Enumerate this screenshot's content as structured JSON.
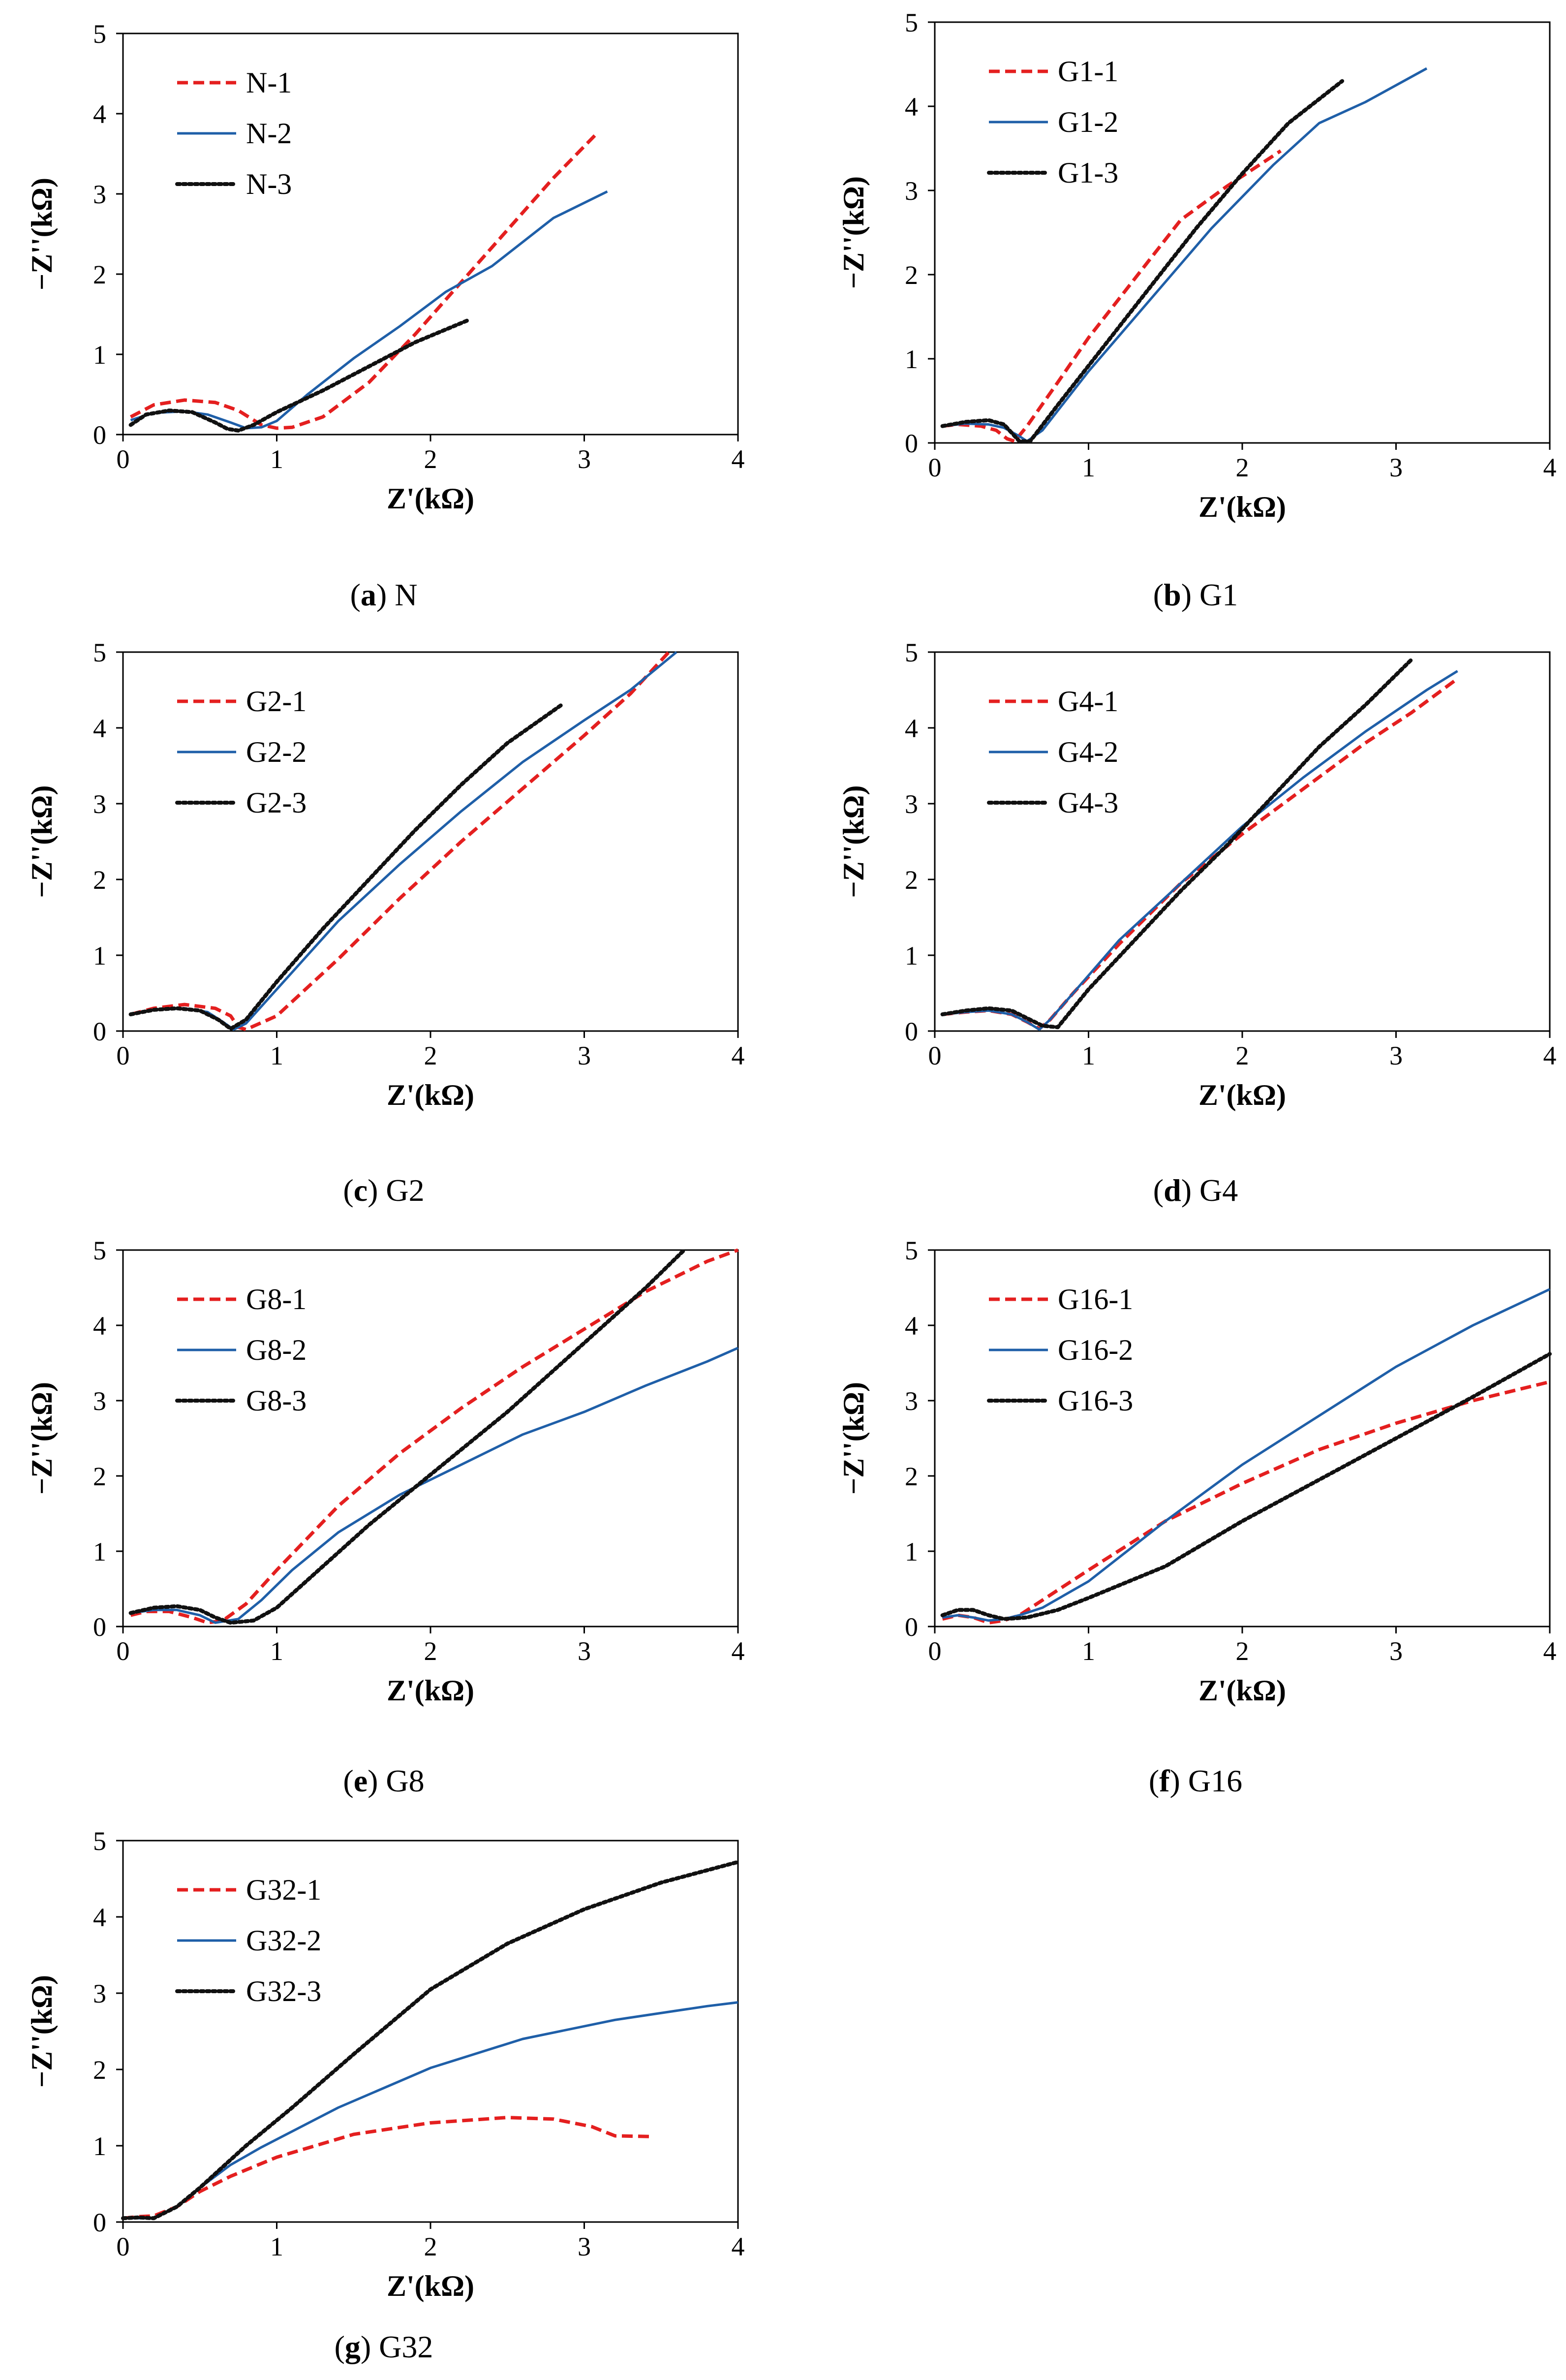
{
  "figure": {
    "colors": {
      "dashed_red": "#e41f1f",
      "solid_blue": "#1f5fa8",
      "dotted_black": "#111111"
    }
  },
  "chart_data": [
    {
      "type": "line",
      "caption_letter": "a",
      "caption_text": "N",
      "xlabel": "Z'(kΩ)",
      "ylabel": "−Z''(kΩ)",
      "xlim": [
        0,
        4
      ],
      "ylim": [
        0,
        5
      ],
      "xticks": [
        0,
        1,
        2,
        3,
        4
      ],
      "yticks": [
        0,
        1,
        2,
        3,
        4,
        5
      ],
      "legend_position": "top-left",
      "series": [
        {
          "name": "N-1",
          "style": "dashed",
          "x": [
            0.05,
            0.2,
            0.4,
            0.6,
            0.75,
            0.85,
            0.9,
            1.0,
            1.1,
            1.3,
            1.6,
            1.9,
            2.2,
            2.5,
            2.8,
            3.07
          ],
          "y": [
            0.22,
            0.37,
            0.43,
            0.4,
            0.3,
            0.18,
            0.12,
            0.08,
            0.09,
            0.22,
            0.65,
            1.25,
            1.9,
            2.55,
            3.2,
            3.73
          ]
        },
        {
          "name": "N-2",
          "style": "solid",
          "x": [
            0.05,
            0.2,
            0.4,
            0.55,
            0.7,
            0.8,
            0.9,
            1.0,
            1.2,
            1.5,
            1.8,
            2.1,
            2.4,
            2.8,
            3.15
          ],
          "y": [
            0.18,
            0.27,
            0.29,
            0.25,
            0.15,
            0.08,
            0.09,
            0.17,
            0.5,
            0.95,
            1.35,
            1.78,
            2.1,
            2.7,
            3.03
          ]
        },
        {
          "name": "N-3",
          "style": "dotted",
          "x": [
            0.05,
            0.15,
            0.3,
            0.45,
            0.6,
            0.68,
            0.75,
            0.85,
            1.0,
            1.3,
            1.6,
            1.9,
            2.25
          ],
          "y": [
            0.12,
            0.25,
            0.3,
            0.28,
            0.15,
            0.07,
            0.05,
            0.12,
            0.28,
            0.55,
            0.85,
            1.15,
            1.43
          ]
        }
      ]
    },
    {
      "type": "line",
      "caption_letter": "b",
      "caption_text": "G1",
      "xlabel": "Z'(kΩ)",
      "ylabel": "−Z''(kΩ)",
      "xlim": [
        0,
        4
      ],
      "ylim": [
        0,
        5
      ],
      "xticks": [
        0,
        1,
        2,
        3,
        4
      ],
      "yticks": [
        0,
        1,
        2,
        3,
        4,
        5
      ],
      "legend_position": "top-left",
      "series": [
        {
          "name": "G1-1",
          "style": "dashed",
          "x": [
            0.05,
            0.15,
            0.3,
            0.4,
            0.47,
            0.52,
            0.6,
            0.8,
            1.0,
            1.3,
            1.6,
            1.9,
            2.25
          ],
          "y": [
            0.2,
            0.22,
            0.2,
            0.15,
            0.05,
            0.02,
            0.2,
            0.72,
            1.25,
            1.95,
            2.65,
            3.05,
            3.47
          ]
        },
        {
          "name": "G1-2",
          "style": "solid",
          "x": [
            0.05,
            0.2,
            0.35,
            0.45,
            0.55,
            0.6,
            0.7,
            1.0,
            1.4,
            1.8,
            2.2,
            2.5,
            2.8,
            3.2
          ],
          "y": [
            0.2,
            0.23,
            0.22,
            0.18,
            0.08,
            0.02,
            0.15,
            0.85,
            1.7,
            2.55,
            3.3,
            3.8,
            4.05,
            4.45
          ]
        },
        {
          "name": "G1-3",
          "style": "dotted",
          "x": [
            0.05,
            0.2,
            0.35,
            0.45,
            0.5,
            0.55,
            0.62,
            0.8,
            1.1,
            1.4,
            1.7,
            2.0,
            2.3,
            2.65
          ],
          "y": [
            0.2,
            0.25,
            0.27,
            0.22,
            0.12,
            0.02,
            0.02,
            0.45,
            1.15,
            1.85,
            2.55,
            3.2,
            3.8,
            4.3
          ]
        }
      ]
    },
    {
      "type": "line",
      "caption_letter": "c",
      "caption_text": "G2",
      "xlabel": "Z'(kΩ)",
      "ylabel": "−Z''(kΩ)",
      "xlim": [
        0,
        4
      ],
      "ylim": [
        0,
        5
      ],
      "xticks": [
        0,
        1,
        2,
        3,
        4
      ],
      "yticks": [
        0,
        1,
        2,
        3,
        4,
        5
      ],
      "legend_position": "top-left",
      "series": [
        {
          "name": "G2-1",
          "style": "dashed",
          "x": [
            0.05,
            0.2,
            0.4,
            0.6,
            0.7,
            0.75,
            0.8,
            1.0,
            1.4,
            1.8,
            2.2,
            2.6,
            3.0,
            3.3,
            3.55
          ],
          "y": [
            0.22,
            0.3,
            0.35,
            0.3,
            0.2,
            0.05,
            0.02,
            0.2,
            0.95,
            1.75,
            2.5,
            3.2,
            3.9,
            4.45,
            5.0
          ]
        },
        {
          "name": "G2-2",
          "style": "solid",
          "x": [
            0.05,
            0.2,
            0.4,
            0.55,
            0.65,
            0.72,
            0.8,
            1.0,
            1.4,
            1.8,
            2.2,
            2.6,
            3.0,
            3.3,
            3.6
          ],
          "y": [
            0.22,
            0.28,
            0.3,
            0.25,
            0.12,
            0.02,
            0.1,
            0.55,
            1.45,
            2.2,
            2.9,
            3.55,
            4.1,
            4.5,
            5.0
          ]
        },
        {
          "name": "G2-3",
          "style": "dotted",
          "x": [
            0.05,
            0.2,
            0.35,
            0.5,
            0.62,
            0.7,
            0.8,
            1.0,
            1.3,
            1.6,
            1.9,
            2.2,
            2.5,
            2.85
          ],
          "y": [
            0.22,
            0.28,
            0.3,
            0.27,
            0.15,
            0.03,
            0.15,
            0.65,
            1.35,
            2.0,
            2.65,
            3.25,
            3.8,
            4.3
          ]
        }
      ]
    },
    {
      "type": "line",
      "caption_letter": "d",
      "caption_text": "G4",
      "xlabel": "Z'(kΩ)",
      "ylabel": "−Z''(kΩ)",
      "xlim": [
        0,
        4
      ],
      "ylim": [
        0,
        5
      ],
      "xticks": [
        0,
        1,
        2,
        3,
        4
      ],
      "yticks": [
        0,
        1,
        2,
        3,
        4,
        5
      ],
      "legend_position": "top-left",
      "series": [
        {
          "name": "G4-1",
          "style": "dashed",
          "x": [
            0.05,
            0.2,
            0.35,
            0.5,
            0.6,
            0.68,
            0.75,
            0.9,
            1.2,
            1.6,
            2.0,
            2.4,
            2.8,
            3.1,
            3.38
          ],
          "y": [
            0.22,
            0.25,
            0.27,
            0.22,
            0.12,
            0.03,
            0.15,
            0.5,
            1.15,
            1.95,
            2.6,
            3.2,
            3.8,
            4.2,
            4.62
          ]
        },
        {
          "name": "G4-2",
          "style": "solid",
          "x": [
            0.05,
            0.2,
            0.35,
            0.5,
            0.6,
            0.68,
            0.75,
            0.9,
            1.2,
            1.6,
            2.0,
            2.4,
            2.8,
            3.2,
            3.4
          ],
          "y": [
            0.22,
            0.25,
            0.27,
            0.22,
            0.12,
            0.02,
            0.15,
            0.5,
            1.2,
            1.95,
            2.7,
            3.35,
            3.95,
            4.5,
            4.75
          ]
        },
        {
          "name": "G4-3",
          "style": "dotted",
          "x": [
            0.05,
            0.2,
            0.35,
            0.5,
            0.62,
            0.7,
            0.8,
            1.0,
            1.3,
            1.6,
            1.9,
            2.2,
            2.5,
            2.8,
            3.1
          ],
          "y": [
            0.22,
            0.27,
            0.3,
            0.27,
            0.15,
            0.07,
            0.05,
            0.55,
            1.2,
            1.85,
            2.45,
            3.1,
            3.75,
            4.3,
            4.9
          ]
        }
      ]
    },
    {
      "type": "line",
      "caption_letter": "e",
      "caption_text": "G8",
      "xlabel": "Z'(kΩ)",
      "ylabel": "−Z''(kΩ)",
      "xlim": [
        0,
        4
      ],
      "ylim": [
        0,
        5
      ],
      "xticks": [
        0,
        1,
        2,
        3,
        4
      ],
      "yticks": [
        0,
        1,
        2,
        3,
        4,
        5
      ],
      "legend_position": "top-left",
      "series": [
        {
          "name": "G8-1",
          "style": "dashed",
          "x": [
            0.05,
            0.15,
            0.3,
            0.45,
            0.55,
            0.65,
            0.8,
            1.0,
            1.4,
            1.8,
            2.2,
            2.6,
            3.0,
            3.4,
            3.8,
            4.0
          ],
          "y": [
            0.15,
            0.2,
            0.2,
            0.12,
            0.05,
            0.08,
            0.3,
            0.75,
            1.6,
            2.3,
            2.9,
            3.45,
            3.95,
            4.45,
            4.85,
            5.0
          ]
        },
        {
          "name": "G8-2",
          "style": "solid",
          "x": [
            0.05,
            0.2,
            0.35,
            0.5,
            0.6,
            0.75,
            0.9,
            1.1,
            1.4,
            1.8,
            2.2,
            2.6,
            3.0,
            3.4,
            3.8,
            4.0
          ],
          "y": [
            0.18,
            0.22,
            0.22,
            0.15,
            0.05,
            0.1,
            0.35,
            0.75,
            1.25,
            1.75,
            2.15,
            2.55,
            2.85,
            3.2,
            3.52,
            3.7
          ]
        },
        {
          "name": "G8-3",
          "style": "dotted",
          "x": [
            0.05,
            0.2,
            0.35,
            0.5,
            0.6,
            0.7,
            0.85,
            1.0,
            1.3,
            1.6,
            1.9,
            2.2,
            2.5,
            2.8,
            3.1,
            3.4,
            3.65
          ],
          "y": [
            0.18,
            0.25,
            0.27,
            0.22,
            0.12,
            0.05,
            0.08,
            0.25,
            0.8,
            1.35,
            1.85,
            2.35,
            2.85,
            3.4,
            3.95,
            4.5,
            5.0
          ]
        }
      ]
    },
    {
      "type": "line",
      "caption_letter": "f",
      "caption_text": "G16",
      "xlabel": "Z'(kΩ)",
      "ylabel": "−Z''(kΩ)",
      "xlim": [
        0,
        4
      ],
      "ylim": [
        0,
        5
      ],
      "xticks": [
        0,
        1,
        2,
        3,
        4
      ],
      "yticks": [
        0,
        1,
        2,
        3,
        4,
        5
      ],
      "legend_position": "top-left",
      "series": [
        {
          "name": "G16-1",
          "style": "dashed",
          "x": [
            0.05,
            0.15,
            0.25,
            0.35,
            0.45,
            0.55,
            0.7,
            1.0,
            1.5,
            2.0,
            2.5,
            3.0,
            3.5,
            4.0
          ],
          "y": [
            0.1,
            0.15,
            0.12,
            0.05,
            0.08,
            0.15,
            0.35,
            0.75,
            1.4,
            1.9,
            2.35,
            2.7,
            3.0,
            3.25
          ]
        },
        {
          "name": "G16-2",
          "style": "solid",
          "x": [
            0.05,
            0.15,
            0.25,
            0.35,
            0.45,
            0.55,
            0.7,
            1.0,
            1.5,
            2.0,
            2.5,
            3.0,
            3.5,
            4.0
          ],
          "y": [
            0.12,
            0.15,
            0.12,
            0.08,
            0.1,
            0.15,
            0.25,
            0.6,
            1.4,
            2.15,
            2.8,
            3.45,
            4.0,
            4.48
          ]
        },
        {
          "name": "G16-3",
          "style": "dotted",
          "x": [
            0.05,
            0.15,
            0.25,
            0.35,
            0.45,
            0.6,
            0.8,
            1.0,
            1.5,
            2.0,
            2.5,
            3.0,
            3.5,
            4.0
          ],
          "y": [
            0.15,
            0.22,
            0.22,
            0.15,
            0.1,
            0.12,
            0.22,
            0.38,
            0.8,
            1.4,
            1.95,
            2.5,
            3.05,
            3.62
          ]
        }
      ]
    },
    {
      "type": "line",
      "caption_letter": "g",
      "caption_text": "G32",
      "xlabel": "Z'(kΩ)",
      "ylabel": "−Z''(kΩ)",
      "xlim": [
        0,
        4
      ],
      "ylim": [
        0,
        5
      ],
      "xticks": [
        0,
        1,
        2,
        3,
        4
      ],
      "yticks": [
        0,
        1,
        2,
        3,
        4,
        5
      ],
      "legend_position": "top-left",
      "series": [
        {
          "name": "G32-1",
          "style": "dashed",
          "x": [
            0.0,
            0.1,
            0.2,
            0.35,
            0.5,
            0.7,
            1.0,
            1.5,
            2.0,
            2.5,
            2.8,
            3.05,
            3.2,
            3.45
          ],
          "y": [
            0.05,
            0.07,
            0.08,
            0.2,
            0.4,
            0.6,
            0.85,
            1.15,
            1.3,
            1.37,
            1.35,
            1.25,
            1.13,
            1.12
          ]
        },
        {
          "name": "G32-2",
          "style": "solid",
          "x": [
            0.0,
            0.1,
            0.2,
            0.35,
            0.5,
            0.7,
            0.9,
            1.4,
            2.0,
            2.6,
            3.2,
            3.8,
            4.0
          ],
          "y": [
            0.05,
            0.05,
            0.05,
            0.2,
            0.45,
            0.75,
            0.98,
            1.5,
            2.02,
            2.4,
            2.65,
            2.83,
            2.88
          ]
        },
        {
          "name": "G32-3",
          "style": "dotted",
          "x": [
            0.0,
            0.1,
            0.2,
            0.35,
            0.5,
            0.8,
            1.1,
            1.5,
            2.0,
            2.5,
            3.0,
            3.5,
            4.0
          ],
          "y": [
            0.05,
            0.06,
            0.05,
            0.2,
            0.45,
            1.0,
            1.5,
            2.2,
            3.05,
            3.65,
            4.1,
            4.45,
            4.72
          ]
        }
      ]
    }
  ]
}
